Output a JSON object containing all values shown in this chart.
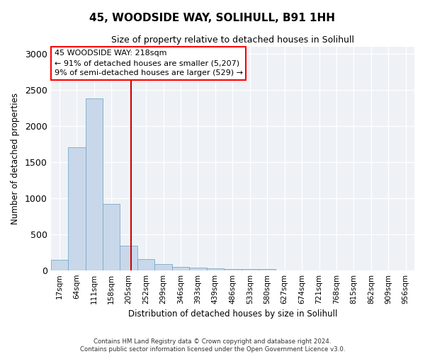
{
  "title": "45, WOODSIDE WAY, SOLIHULL, B91 1HH",
  "subtitle": "Size of property relative to detached houses in Solihull",
  "xlabel": "Distribution of detached houses by size in Solihull",
  "ylabel": "Number of detached properties",
  "bar_labels": [
    "17sqm",
    "64sqm",
    "111sqm",
    "158sqm",
    "205sqm",
    "252sqm",
    "299sqm",
    "346sqm",
    "393sqm",
    "439sqm",
    "486sqm",
    "533sqm",
    "580sqm",
    "627sqm",
    "674sqm",
    "721sqm",
    "768sqm",
    "815sqm",
    "862sqm",
    "909sqm",
    "956sqm"
  ],
  "bar_values": [
    140,
    1700,
    2380,
    920,
    340,
    155,
    90,
    50,
    35,
    25,
    20,
    20,
    15,
    0,
    0,
    0,
    0,
    0,
    0,
    0,
    0
  ],
  "bar_color": "#c8d8ea",
  "bar_edgecolor": "#7aaac8",
  "property_label": "45 WOODSIDE WAY: 218sqm",
  "annotation_line1": "← 91% of detached houses are smaller (5,207)",
  "annotation_line2": "9% of semi-detached houses are larger (529) →",
  "vline_color": "#cc0000",
  "vline_pos": 4.15,
  "ylim": [
    0,
    3100
  ],
  "yticks": [
    0,
    500,
    1000,
    1500,
    2000,
    2500,
    3000
  ],
  "footnote1": "Contains HM Land Registry data © Crown copyright and database right 2024.",
  "footnote2": "Contains public sector information licensed under the Open Government Licence v3.0.",
  "background_color": "#eef2f6"
}
